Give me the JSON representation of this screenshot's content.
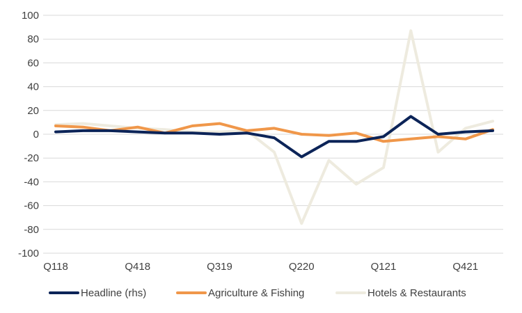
{
  "chart_data": {
    "type": "line",
    "title": "",
    "xlabel": "",
    "ylabel": "",
    "ylim": [
      -100,
      100
    ],
    "yticks": [
      100,
      80,
      60,
      40,
      20,
      0,
      -20,
      -40,
      -60,
      -80,
      -100
    ],
    "grid": true,
    "legend_position": "bottom",
    "categories": [
      "Q118",
      "Q218",
      "Q318",
      "Q418",
      "Q119",
      "Q219",
      "Q319",
      "Q419",
      "Q120",
      "Q220",
      "Q320",
      "Q420",
      "Q121",
      "Q221",
      "Q321",
      "Q421",
      "Q122"
    ],
    "x_tick_labels": [
      {
        "index": 0,
        "label": "Q118"
      },
      {
        "index": 3,
        "label": "Q418"
      },
      {
        "index": 6,
        "label": "Q319"
      },
      {
        "index": 9,
        "label": "Q220"
      },
      {
        "index": 12,
        "label": "Q121"
      },
      {
        "index": 15,
        "label": "Q421"
      }
    ],
    "series": [
      {
        "name": "Headline (rhs)",
        "color": "#0c2458",
        "values": [
          2,
          3,
          3,
          2,
          1,
          1,
          0,
          1,
          -3,
          -19,
          -6,
          -6,
          -2,
          15,
          0,
          2,
          3
        ]
      },
      {
        "name": "Agriculture & Fishing",
        "color": "#f0974a",
        "values": [
          7,
          6,
          3,
          6,
          1,
          7,
          9,
          3,
          5,
          0,
          -1,
          1,
          -6,
          -4,
          -2,
          -4,
          4
        ]
      },
      {
        "name": "Hotels & Restaurants",
        "color": "#eeebdf",
        "values": [
          8,
          9,
          7,
          5,
          4,
          2,
          2,
          3,
          -15,
          -75,
          -22,
          -42,
          -28,
          87,
          -15,
          5,
          11
        ]
      }
    ]
  }
}
